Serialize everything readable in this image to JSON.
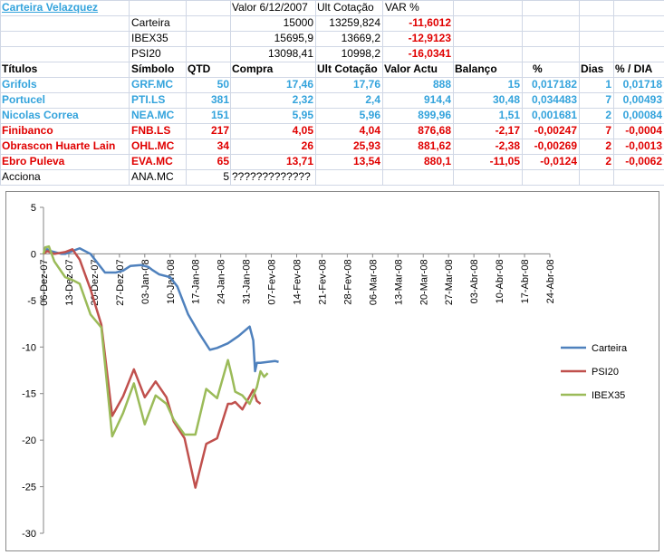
{
  "sheet": {
    "title": "Carteira Velazquez",
    "summary_header": {
      "valor": "Valor 6/12/2007",
      "ult": "Ult Cotação",
      "var": "VAR %"
    },
    "summary": [
      {
        "name": "Carteira",
        "valor": "15000",
        "ult": "13259,824",
        "var": "-11,6012"
      },
      {
        "name": "IBEX35",
        "valor": "15695,9",
        "ult": "13669,2",
        "var": "-12,9123"
      },
      {
        "name": "PSI20",
        "valor": "13098,41",
        "ult": "10998,2",
        "var": "-16,0341"
      }
    ],
    "columns": [
      "Títulos",
      "Símbolo",
      "QTD",
      "Compra",
      "Ult Cotação",
      "Valor Actu",
      "Balanço",
      "%",
      "Dias",
      "% / DIA"
    ],
    "rows": [
      {
        "titulo": "Grifols",
        "simbolo": "GRF.MC",
        "qtd": "50",
        "compra": "17,46",
        "ult": "17,76",
        "valor": "888",
        "balanco": "15",
        "pct": "0,017182",
        "dias": "1",
        "pctdia": "0,01718",
        "color": "blue"
      },
      {
        "titulo": "Portucel",
        "simbolo": "PTI.LS",
        "qtd": "381",
        "compra": "2,32",
        "ult": "2,4",
        "valor": "914,4",
        "balanco": "30,48",
        "pct": "0,034483",
        "dias": "7",
        "pctdia": "0,00493",
        "color": "blue"
      },
      {
        "titulo": "Nicolas Correa",
        "simbolo": "NEA.MC",
        "qtd": "151",
        "compra": "5,95",
        "ult": "5,96",
        "valor": "899,96",
        "balanco": "1,51",
        "pct": "0,001681",
        "dias": "2",
        "pctdia": "0,00084",
        "color": "blue"
      },
      {
        "titulo": "Finibanco",
        "simbolo": "FNB.LS",
        "qtd": "217",
        "compra": "4,05",
        "ult": "4,04",
        "valor": "876,68",
        "balanco": "-2,17",
        "pct": "-0,00247",
        "dias": "7",
        "pctdia": "-0,0004",
        "color": "red"
      },
      {
        "titulo": "Obrascon Huarte Lain",
        "simbolo": "OHL.MC",
        "qtd": "34",
        "compra": "26",
        "ult": "25,93",
        "valor": "881,62",
        "balanco": "-2,38",
        "pct": "-0,00269",
        "dias": "2",
        "pctdia": "-0,0013",
        "color": "red"
      },
      {
        "titulo": "Ebro Puleva",
        "simbolo": "EVA.MC",
        "qtd": "65",
        "compra": "13,71",
        "ult": "13,54",
        "valor": "880,1",
        "balanco": "-11,05",
        "pct": "-0,0124",
        "dias": "2",
        "pctdia": "-0,0062",
        "color": "red"
      },
      {
        "titulo": "Acciona",
        "simbolo": "ANA.MC",
        "qtd": "5",
        "compra": "?????????????",
        "color": "black"
      }
    ]
  },
  "chart_data": {
    "type": "line",
    "x_ticks": [
      "06-Dez-07",
      "13-Dez-07",
      "20-Dez-07",
      "27-Dez-07",
      "03-Jan-08",
      "10-Jan-08",
      "17-Jan-08",
      "24-Jan-08",
      "31-Jan-08",
      "07-Fev-08",
      "14-Fev-08",
      "21-Fev-08",
      "28-Fev-08",
      "06-Mar-08",
      "13-Mar-08",
      "20-Mar-08",
      "27-Mar-08",
      "03-Abr-08",
      "10-Abr-08",
      "17-Abr-08",
      "24-Abr-08"
    ],
    "ylim": [
      -30,
      5
    ],
    "y_ticks": [
      5,
      0,
      -5,
      -10,
      -15,
      -20,
      -25,
      -30
    ],
    "grid": "none",
    "legend": "right",
    "series": [
      {
        "name": "Carteira",
        "color": "#4f81bd",
        "points": [
          [
            0,
            0
          ],
          [
            1,
            0.5
          ],
          [
            2,
            0.3
          ],
          [
            5,
            0
          ],
          [
            6,
            0
          ],
          [
            8,
            0.3
          ],
          [
            10,
            0.6
          ],
          [
            13,
            0
          ],
          [
            15,
            -1
          ],
          [
            17,
            -2
          ],
          [
            20,
            -2
          ],
          [
            22,
            -1.8
          ],
          [
            24,
            -1.3
          ],
          [
            27,
            -1.2
          ],
          [
            29,
            -1.4
          ],
          [
            30,
            -1.7
          ],
          [
            32,
            -2.2
          ],
          [
            35,
            -2.5
          ],
          [
            37,
            -3.5
          ],
          [
            40,
            -6.5
          ],
          [
            43,
            -8.5
          ],
          [
            46,
            -10.3
          ],
          [
            48,
            -10.1
          ],
          [
            51,
            -9.6
          ],
          [
            54,
            -8.8
          ],
          [
            57,
            -7.8
          ],
          [
            58,
            -9.3
          ],
          [
            58.5,
            -12.6
          ],
          [
            59,
            -11.7
          ],
          [
            60,
            -11.7
          ],
          [
            64,
            -11.5
          ],
          [
            65,
            -11.6
          ]
        ]
      },
      {
        "name": "PSI20",
        "color": "#c0504d",
        "points": [
          [
            0,
            0
          ],
          [
            1,
            0.3
          ],
          [
            3,
            0
          ],
          [
            6,
            0.2
          ],
          [
            8,
            0.5
          ],
          [
            10,
            -0.6
          ],
          [
            13,
            -3.8
          ],
          [
            16,
            -7.6
          ],
          [
            19,
            -17.4
          ],
          [
            22,
            -15.3
          ],
          [
            25,
            -12.4
          ],
          [
            28,
            -15.4
          ],
          [
            31,
            -13.7
          ],
          [
            34,
            -15.4
          ],
          [
            36,
            -18
          ],
          [
            39,
            -19.8
          ],
          [
            42,
            -25.1
          ],
          [
            45,
            -20.4
          ],
          [
            48,
            -19.8
          ],
          [
            51,
            -16.1
          ],
          [
            52,
            -16.1
          ],
          [
            53,
            -15.9
          ],
          [
            55,
            -16.7
          ],
          [
            57,
            -15.3
          ],
          [
            58,
            -14.6
          ],
          [
            59,
            -15.8
          ],
          [
            60,
            -16.1
          ]
        ]
      },
      {
        "name": "IBEX35",
        "color": "#9bbb59",
        "points": [
          [
            0,
            0
          ],
          [
            0.5,
            0.7
          ],
          [
            1.5,
            0.8
          ],
          [
            3,
            -0.8
          ],
          [
            6,
            -2.5
          ],
          [
            8,
            -2.8
          ],
          [
            10,
            -3.2
          ],
          [
            13,
            -6.5
          ],
          [
            16,
            -7.9
          ],
          [
            19,
            -19.6
          ],
          [
            22,
            -17.1
          ],
          [
            25,
            -13.9
          ],
          [
            28,
            -18.3
          ],
          [
            31,
            -15.2
          ],
          [
            34,
            -16.1
          ],
          [
            36,
            -17.8
          ],
          [
            39,
            -19.4
          ],
          [
            42,
            -19.4
          ],
          [
            45,
            -14.5
          ],
          [
            48,
            -15.5
          ],
          [
            51,
            -11.4
          ],
          [
            52,
            -13
          ],
          [
            53,
            -14.8
          ],
          [
            55,
            -15.2
          ],
          [
            57,
            -16.1
          ],
          [
            59,
            -14.3
          ],
          [
            60,
            -12.6
          ],
          [
            61,
            -13.2
          ],
          [
            62,
            -12.8
          ]
        ]
      }
    ]
  }
}
